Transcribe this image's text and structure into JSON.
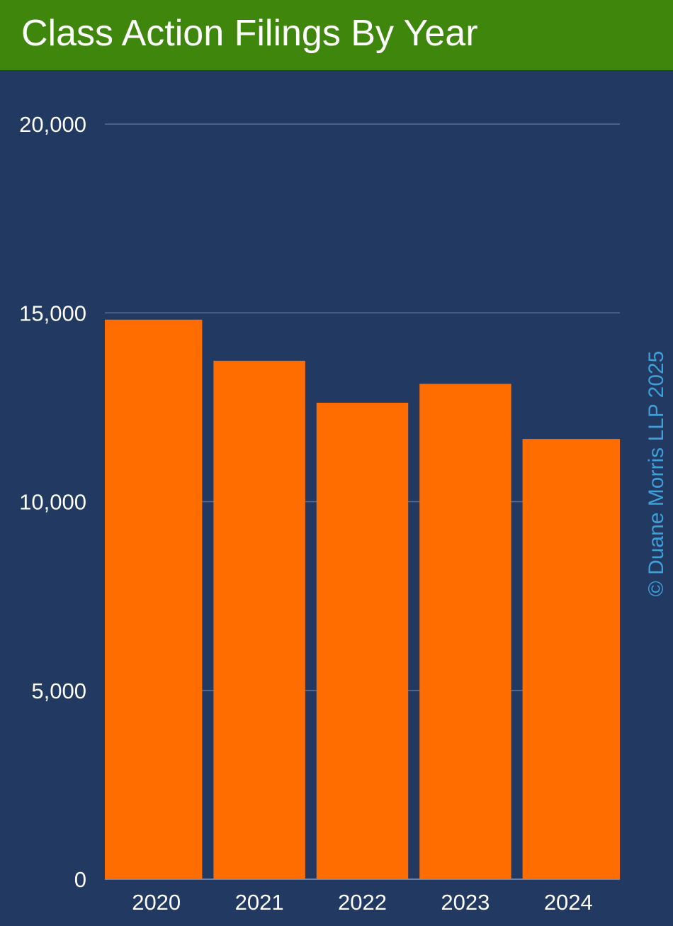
{
  "chart_data": {
    "type": "bar",
    "title": "Class Action Filings By Year",
    "categories": [
      "2020",
      "2021",
      "2022",
      "2023",
      "2024"
    ],
    "values": [
      14820,
      13730,
      12620,
      13120,
      11660
    ],
    "ylim": [
      0,
      20000
    ],
    "y_ticks": [
      0,
      5000,
      10000,
      15000,
      20000
    ],
    "y_tick_labels": [
      "0",
      "5,000",
      "10,000",
      "15,000",
      "20,000"
    ],
    "xlabel": "",
    "ylabel": "",
    "grid": true,
    "legend": "none",
    "watermark": "© Duane Morris LLP 2025",
    "colors": {
      "background": "#223962",
      "title_bar": "#3f860d",
      "bar": "#ff6d00",
      "grid": "#5a6f96",
      "text": "#ffffff",
      "watermark": "#3f9fd8"
    }
  }
}
